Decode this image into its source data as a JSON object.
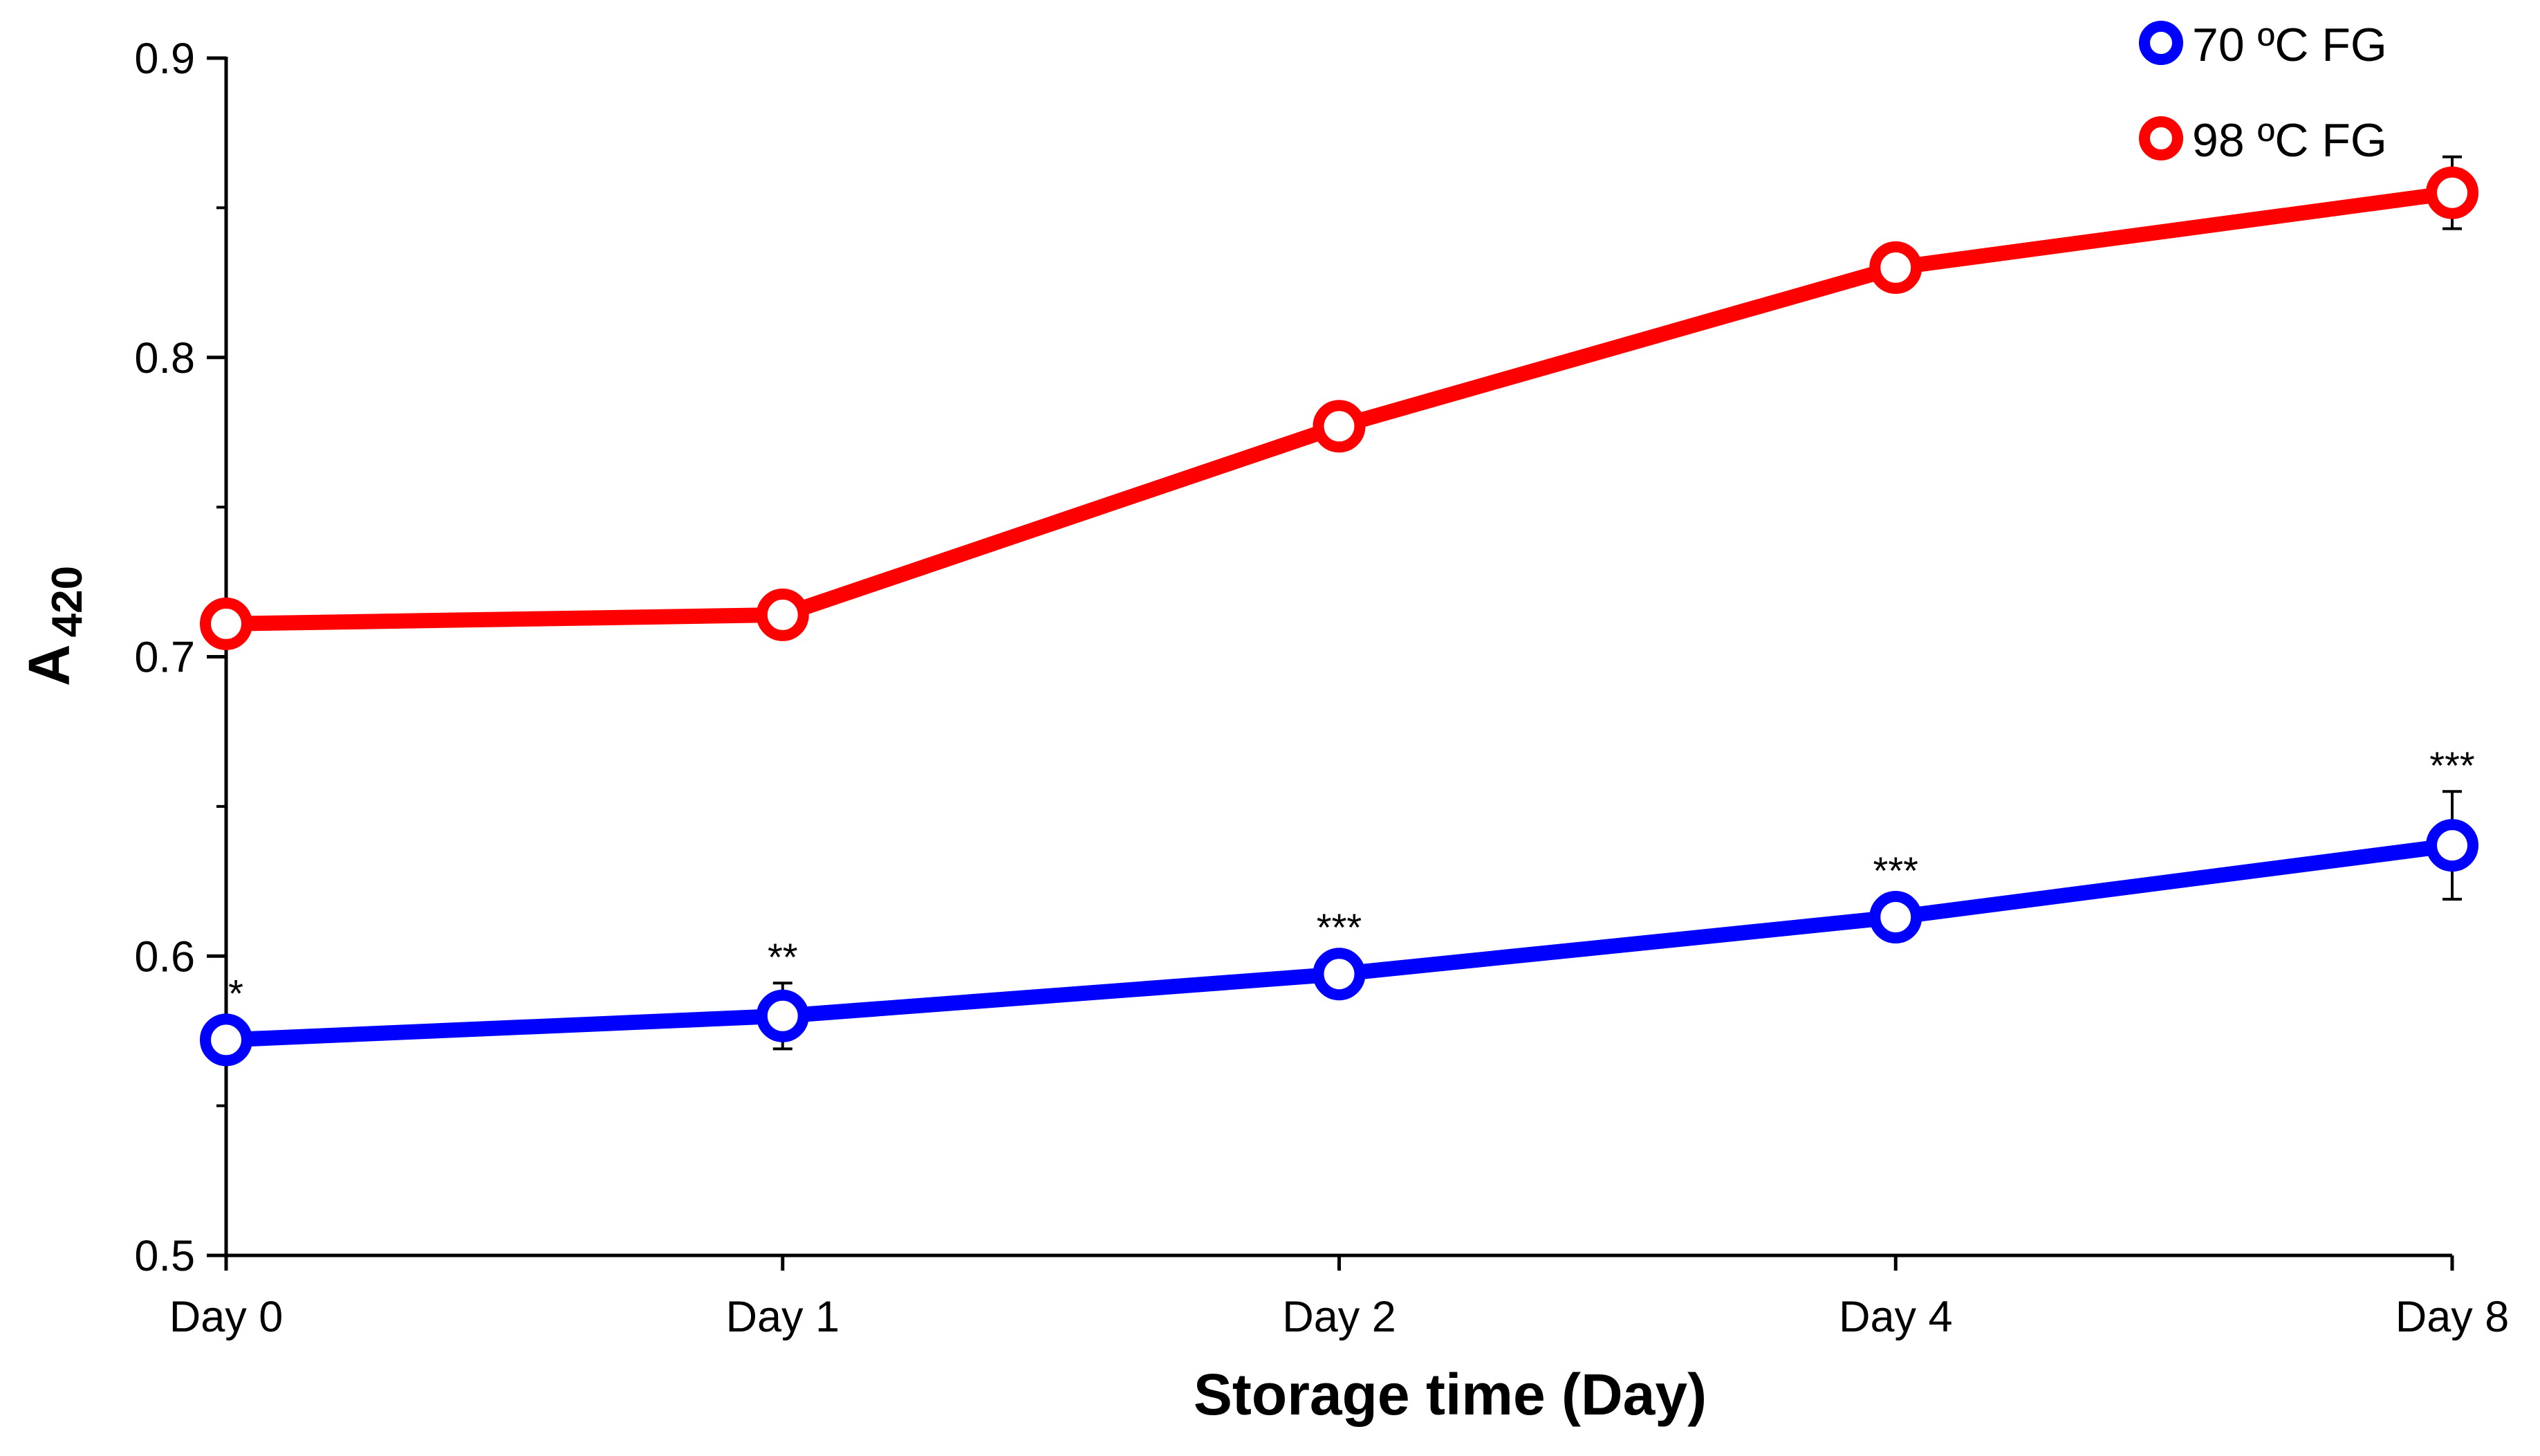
{
  "chart_data": {
    "type": "line",
    "title": "",
    "xlabel": "Storage time (Day)",
    "ylabel": "A",
    "ylabel_subscript": "420",
    "categories": [
      "Day 0",
      "Day 1",
      "Day 2",
      "Day 4",
      "Day 8"
    ],
    "ylim": [
      0.5,
      0.9
    ],
    "yticks": [
      0.5,
      0.6,
      0.7,
      0.8,
      0.9
    ],
    "ytick_labels": [
      "0.5",
      "0.6",
      "0.7",
      "0.8",
      "0.9"
    ],
    "grid": false,
    "legend_position": "top-right",
    "series": [
      {
        "name": "70 ºC FG",
        "color": "#0000ff",
        "values": [
          0.572,
          0.58,
          0.594,
          0.613,
          0.637
        ],
        "errors": [
          0.0,
          0.011,
          0.0,
          0.0,
          0.018
        ],
        "annotations": [
          "*",
          "**",
          "***",
          "***",
          "***"
        ]
      },
      {
        "name": "98 ºC FG",
        "color": "#ff0000",
        "values": [
          0.711,
          0.714,
          0.777,
          0.83,
          0.855
        ],
        "errors": [
          0.0,
          0.0,
          0.0,
          0.0,
          0.012
        ],
        "annotations": [
          "",
          "",
          "",
          "",
          ""
        ]
      }
    ]
  }
}
